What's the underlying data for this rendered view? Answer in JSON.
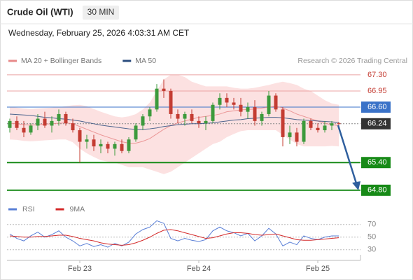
{
  "header": {
    "title": "Crude Oil (WTI)",
    "interval": "30 MIN",
    "datetime": "Wednesday, February 25, 2026 4:03:31 AM CET",
    "source": "Research © 2026 Trading Central"
  },
  "chart_data": [
    {
      "type": "candlestick",
      "categories": [
        null,
        null,
        null,
        null,
        null,
        null,
        null,
        null,
        null,
        null,
        "Feb 23",
        null,
        null,
        null,
        null,
        null,
        null,
        null,
        null,
        null,
        null,
        null,
        null,
        null,
        null,
        null,
        null,
        "Feb 24",
        null,
        null,
        null,
        null,
        null,
        null,
        null,
        null,
        null,
        null,
        null,
        null,
        null,
        null,
        null,
        null,
        "Feb 25",
        null,
        null,
        null
      ],
      "open": [
        66.15,
        66.3,
        66.15,
        66.05,
        66.2,
        66.35,
        66.2,
        66.3,
        66.45,
        66.25,
        66.1,
        65.85,
        65.9,
        65.75,
        65.8,
        65.7,
        65.8,
        65.65,
        65.9,
        66.2,
        66.4,
        66.55,
        67.0,
        66.95,
        66.45,
        66.35,
        66.45,
        66.3,
        66.25,
        66.3,
        66.65,
        66.8,
        66.7,
        66.65,
        66.5,
        66.6,
        66.3,
        66.45,
        66.85,
        66.55,
        65.95,
        66.05,
        65.85,
        66.3,
        66.15,
        66.1,
        66.2,
        66.25
      ],
      "high": [
        66.35,
        66.4,
        66.3,
        66.25,
        66.45,
        66.5,
        66.4,
        66.55,
        66.5,
        66.35,
        66.15,
        66.0,
        66.0,
        65.9,
        65.85,
        65.85,
        65.9,
        65.95,
        66.25,
        66.45,
        66.6,
        67.1,
        67.2,
        67.0,
        66.55,
        66.5,
        66.55,
        66.4,
        66.4,
        66.7,
        66.9,
        66.9,
        66.8,
        66.8,
        66.7,
        66.75,
        66.5,
        66.95,
        66.9,
        66.6,
        66.2,
        66.15,
        66.35,
        66.35,
        66.25,
        66.3,
        66.3,
        66.28
      ],
      "low": [
        66.05,
        66.1,
        65.95,
        66.0,
        66.1,
        66.15,
        66.05,
        66.2,
        66.2,
        66.05,
        65.4,
        65.7,
        65.65,
        65.6,
        65.6,
        65.55,
        65.6,
        65.6,
        65.85,
        66.1,
        66.3,
        66.5,
        66.8,
        66.35,
        66.25,
        66.2,
        66.25,
        66.15,
        66.1,
        66.25,
        66.55,
        66.6,
        66.55,
        66.4,
        66.35,
        66.2,
        66.2,
        66.4,
        66.5,
        65.75,
        65.8,
        65.75,
        65.8,
        66.1,
        66.05,
        66.05,
        66.1,
        66.2
      ],
      "close": [
        66.3,
        66.15,
        66.05,
        66.2,
        66.35,
        66.2,
        66.3,
        66.45,
        66.25,
        66.1,
        65.85,
        65.9,
        65.75,
        65.8,
        65.7,
        65.8,
        65.65,
        65.9,
        66.2,
        66.4,
        66.55,
        67.0,
        66.95,
        66.45,
        66.35,
        66.45,
        66.3,
        66.25,
        66.3,
        66.65,
        66.8,
        66.7,
        66.65,
        66.5,
        66.6,
        66.3,
        66.45,
        66.85,
        66.55,
        65.95,
        66.05,
        65.85,
        66.3,
        66.15,
        66.1,
        66.2,
        66.25,
        66.24
      ],
      "up_color": "#3c9a3c",
      "down_color": "#c43c32",
      "series": [
        {
          "name": "MA 20 + Bollinger Bands",
          "color": "#e88a8a",
          "band_color": "#fbd9d9",
          "values": [
            66.25,
            66.24,
            66.22,
            66.21,
            66.22,
            66.23,
            66.24,
            66.25,
            66.26,
            66.24,
            66.18,
            66.12,
            66.06,
            66.0,
            65.95,
            65.9,
            65.85,
            65.82,
            65.82,
            65.86,
            65.92,
            66.02,
            66.12,
            66.2,
            66.26,
            66.3,
            66.34,
            66.38,
            66.4,
            66.42,
            66.45,
            66.5,
            66.52,
            66.54,
            66.55,
            66.56,
            66.58,
            66.6,
            66.62,
            66.58,
            66.52,
            66.45,
            66.4,
            66.35,
            66.3,
            66.25,
            66.22,
            66.2
          ],
          "upper": [
            66.6,
            66.59,
            66.57,
            66.56,
            66.57,
            66.58,
            66.59,
            66.6,
            66.62,
            66.64,
            66.65,
            66.62,
            66.56,
            66.5,
            66.45,
            66.4,
            66.38,
            66.4,
            66.45,
            66.55,
            66.7,
            66.95,
            67.2,
            67.3,
            67.3,
            67.25,
            67.15,
            67.1,
            67.05,
            67.05,
            67.05,
            67.05,
            67.02,
            67.0,
            67.0,
            67.02,
            67.05,
            67.08,
            67.12,
            67.15,
            67.12,
            67.08,
            67.0,
            66.95,
            66.85,
            66.75,
            66.68,
            66.65
          ],
          "lower": [
            65.9,
            65.89,
            65.87,
            65.86,
            65.87,
            65.88,
            65.89,
            65.9,
            65.9,
            65.84,
            65.7,
            65.6,
            65.52,
            65.45,
            65.42,
            65.4,
            65.35,
            65.3,
            65.3,
            65.3,
            65.25,
            65.2,
            65.15,
            65.2,
            65.3,
            65.4,
            65.5,
            65.6,
            65.7,
            65.8,
            65.85,
            65.95,
            66.02,
            66.08,
            66.1,
            66.1,
            66.1,
            66.1,
            66.1,
            66.0,
            65.9,
            65.8,
            65.75,
            65.75,
            65.75,
            65.75,
            65.76,
            65.75
          ]
        },
        {
          "name": "MA 50",
          "color": "#2b4c7e",
          "values": [
            66.45,
            66.44,
            66.43,
            66.42,
            66.4,
            66.38,
            66.37,
            66.35,
            66.34,
            66.32,
            66.3,
            66.27,
            66.24,
            66.21,
            66.19,
            66.17,
            66.15,
            66.13,
            66.12,
            66.12,
            66.13,
            66.15,
            66.18,
            66.2,
            66.22,
            66.23,
            66.24,
            66.24,
            66.25,
            66.26,
            66.28,
            66.3,
            66.32,
            66.33,
            66.35,
            66.36,
            66.37,
            66.38,
            66.38,
            66.37,
            66.35,
            66.33,
            66.32,
            66.31,
            66.3,
            66.29,
            66.28,
            66.27
          ]
        }
      ],
      "levels": [
        {
          "value": 67.3,
          "label": "67.30",
          "color": "#c43c32",
          "line_color": "#eba3a3",
          "boxed": false,
          "dashed": false,
          "width": 1
        },
        {
          "value": 66.95,
          "label": "66.95",
          "color": "#c43c32",
          "line_color": "#eba3a3",
          "boxed": false,
          "dashed": false,
          "width": 1
        },
        {
          "value": 66.6,
          "label": "66.60",
          "color": "#3a72c8",
          "line_color": "#3a72c8",
          "boxed": true,
          "dashed": false,
          "width": 1
        },
        {
          "value": 66.24,
          "label": "66.24",
          "color": "#333333",
          "line_color": "#888888",
          "boxed": true,
          "dashed": true,
          "width": 1
        },
        {
          "value": 65.4,
          "label": "65.40",
          "color": "#178a17",
          "line_color": "#178a17",
          "boxed": true,
          "dashed": false,
          "width": 2
        },
        {
          "value": 64.8,
          "label": "64.80",
          "color": "#178a17",
          "line_color": "#178a17",
          "boxed": true,
          "dashed": false,
          "width": 2
        }
      ],
      "ylim": [
        64.6,
        67.48
      ]
    },
    {
      "type": "line",
      "series": [
        {
          "name": "RSI",
          "color": "#5a7fd6",
          "values": [
            55,
            48,
            44,
            52,
            58,
            50,
            54,
            60,
            50,
            44,
            36,
            40,
            35,
            38,
            34,
            40,
            36,
            42,
            55,
            62,
            66,
            76,
            72,
            48,
            44,
            48,
            45,
            43,
            46,
            60,
            66,
            60,
            57,
            52,
            56,
            44,
            52,
            64,
            55,
            36,
            42,
            38,
            52,
            48,
            46,
            50,
            52,
            52
          ]
        },
        {
          "name": "9MA",
          "color": "#d42a2a",
          "values": [
            52,
            51,
            50,
            50,
            51,
            51,
            52,
            53,
            53,
            51,
            48,
            46,
            44,
            41,
            39,
            38,
            37,
            38,
            41,
            45,
            50,
            56,
            61,
            62,
            60,
            57,
            54,
            51,
            48,
            49,
            52,
            55,
            57,
            57,
            56,
            54,
            53,
            54,
            55,
            52,
            49,
            46,
            45,
            45,
            46,
            47,
            48,
            49
          ]
        }
      ],
      "ylim": [
        13,
        82
      ],
      "yticks": [
        30,
        50,
        70
      ],
      "grid": true
    }
  ]
}
